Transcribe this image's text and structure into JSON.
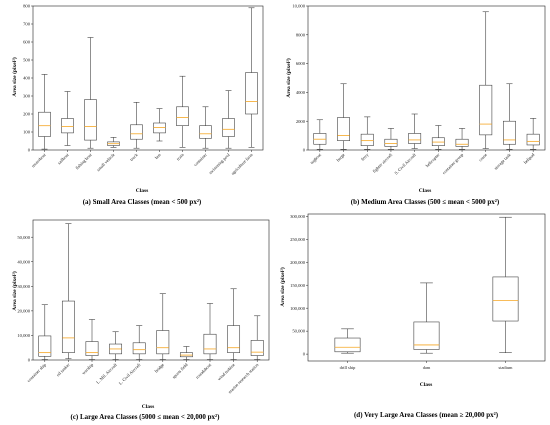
{
  "chart_data": [
    {
      "type": "box",
      "caption": "(a) Small Area Classes (mean < 500 px²)",
      "xlabel": "Class",
      "ylabel": "Area size (pixel²)",
      "ylim": [
        0,
        800
      ],
      "yticks": [
        0,
        100,
        200,
        300,
        400,
        500,
        600,
        700,
        800
      ],
      "ytick_labels": [
        "0",
        "100",
        "200",
        "300",
        "400",
        "500",
        "600",
        "700",
        "800"
      ],
      "categories": [
        "motorboat",
        "sailboat",
        "fishing boat",
        "small vehicle",
        "truck",
        "bus",
        "train",
        "container",
        "swimming pool",
        "agriculture farm"
      ],
      "boxes": [
        {
          "min": 5,
          "q1": 75,
          "median": 135,
          "q3": 210,
          "max": 420
        },
        {
          "min": 25,
          "q1": 95,
          "median": 130,
          "q3": 175,
          "max": 325
        },
        {
          "min": 10,
          "q1": 55,
          "median": 130,
          "q3": 280,
          "max": 625
        },
        {
          "min": 15,
          "q1": 25,
          "median": 35,
          "q3": 45,
          "max": 70
        },
        {
          "min": 10,
          "q1": 60,
          "median": 90,
          "q3": 140,
          "max": 265
        },
        {
          "min": 50,
          "q1": 95,
          "median": 125,
          "q3": 150,
          "max": 230
        },
        {
          "min": 15,
          "q1": 135,
          "median": 180,
          "q3": 240,
          "max": 410
        },
        {
          "min": 10,
          "q1": 65,
          "median": 90,
          "q3": 135,
          "max": 240
        },
        {
          "min": 10,
          "q1": 75,
          "median": 115,
          "q3": 175,
          "max": 330
        },
        {
          "min": 15,
          "q1": 200,
          "median": 270,
          "q3": 430,
          "max": 790
        }
      ]
    },
    {
      "type": "box",
      "caption": "(b) Medium Area Classes (500 ≤ mean < 5000 px²)",
      "xlabel": "Class",
      "ylabel": "Area size (pixel²)",
      "ylim": [
        0,
        10000
      ],
      "yticks": [
        0,
        2000,
        4000,
        6000,
        8000,
        10000
      ],
      "ytick_labels": [
        "0",
        "2000",
        "4000",
        "6000",
        "8000",
        "10,000"
      ],
      "categories": [
        "tugboat",
        "barge",
        "ferry",
        "fighter aircraft",
        "S. Civil Aircraft",
        "helicopter",
        "container group",
        "crane",
        "storage tank",
        "helipad"
      ],
      "boxes": [
        {
          "min": 50,
          "q1": 400,
          "median": 750,
          "q3": 1150,
          "max": 2100
        },
        {
          "min": 50,
          "q1": 650,
          "median": 1000,
          "q3": 2250,
          "max": 4600
        },
        {
          "min": 50,
          "q1": 300,
          "median": 650,
          "q3": 1100,
          "max": 2300
        },
        {
          "min": 50,
          "q1": 250,
          "median": 450,
          "q3": 750,
          "max": 1500
        },
        {
          "min": 100,
          "q1": 450,
          "median": 700,
          "q3": 1150,
          "max": 2500
        },
        {
          "min": 50,
          "q1": 300,
          "median": 550,
          "q3": 850,
          "max": 1700
        },
        {
          "min": 50,
          "q1": 250,
          "median": 400,
          "q3": 750,
          "max": 1500
        },
        {
          "min": 100,
          "q1": 1050,
          "median": 1800,
          "q3": 4500,
          "max": 9600
        },
        {
          "min": 50,
          "q1": 400,
          "median": 700,
          "q3": 2000,
          "max": 4600
        },
        {
          "min": 50,
          "q1": 350,
          "median": 600,
          "q3": 1100,
          "max": 2200
        }
      ]
    },
    {
      "type": "box",
      "caption": "(c) Large Area Classes (5000 ≤ mean < 20,000 px²)",
      "xlabel": "Class",
      "ylabel": "Area size (pixel²)",
      "ylim": [
        0,
        57000
      ],
      "yticks": [
        0,
        10000,
        20000,
        30000,
        40000,
        50000
      ],
      "ytick_labels": [
        "0",
        "10,000",
        "20,000",
        "30,000",
        "40,000",
        "50,000"
      ],
      "categories": [
        "container ship",
        "oil tanker",
        "warship",
        "L. Mil. Aircraft",
        "L. Civil Aircraft",
        "bridge",
        "sports field",
        "roundabout",
        "wind turbine",
        "marine research station"
      ],
      "boxes": [
        {
          "min": 200,
          "q1": 1500,
          "median": 3000,
          "q3": 9800,
          "max": 22500
        },
        {
          "min": 500,
          "q1": 3000,
          "median": 9000,
          "q3": 24000,
          "max": 55500
        },
        {
          "min": 200,
          "q1": 1800,
          "median": 3000,
          "q3": 7500,
          "max": 16500
        },
        {
          "min": 200,
          "q1": 2500,
          "median": 4500,
          "q3": 6500,
          "max": 11500
        },
        {
          "min": 200,
          "q1": 2500,
          "median": 4200,
          "q3": 7000,
          "max": 14000
        },
        {
          "min": 200,
          "q1": 2500,
          "median": 5000,
          "q3": 12000,
          "max": 27000
        },
        {
          "min": 200,
          "q1": 1300,
          "median": 2000,
          "q3": 3000,
          "max": 5500
        },
        {
          "min": 200,
          "q1": 2500,
          "median": 4500,
          "q3": 10500,
          "max": 23000
        },
        {
          "min": 200,
          "q1": 3000,
          "median": 5000,
          "q3": 14000,
          "max": 29000
        },
        {
          "min": 200,
          "q1": 1800,
          "median": 3200,
          "q3": 8000,
          "max": 18000
        }
      ]
    },
    {
      "type": "box",
      "caption": "(d) Very Large Area Classes (mean ≥ 20,000 px²)",
      "xlabel": "Class",
      "ylabel": "Area size (pixel²)",
      "ylim": [
        -15000,
        305000
      ],
      "yticks": [
        0,
        50000,
        100000,
        150000,
        200000,
        250000,
        300000
      ],
      "ytick_labels": [
        "0",
        "50,000",
        "100,000",
        "150,000",
        "200,000",
        "250,000",
        "300,000"
      ],
      "categories": [
        "drill ship",
        "dam",
        "stadium"
      ],
      "boxes": [
        {
          "min": 2000,
          "q1": 5000,
          "median": 15000,
          "q3": 35000,
          "max": 55000
        },
        {
          "min": 2000,
          "q1": 10000,
          "median": 20000,
          "q3": 70000,
          "max": 155000
        },
        {
          "min": 3000,
          "q1": 72000,
          "median": 117000,
          "q3": 168000,
          "max": 298000
        }
      ]
    }
  ],
  "colors": {
    "box": "#333333",
    "median": "#f5a623",
    "axis": "#222222"
  }
}
